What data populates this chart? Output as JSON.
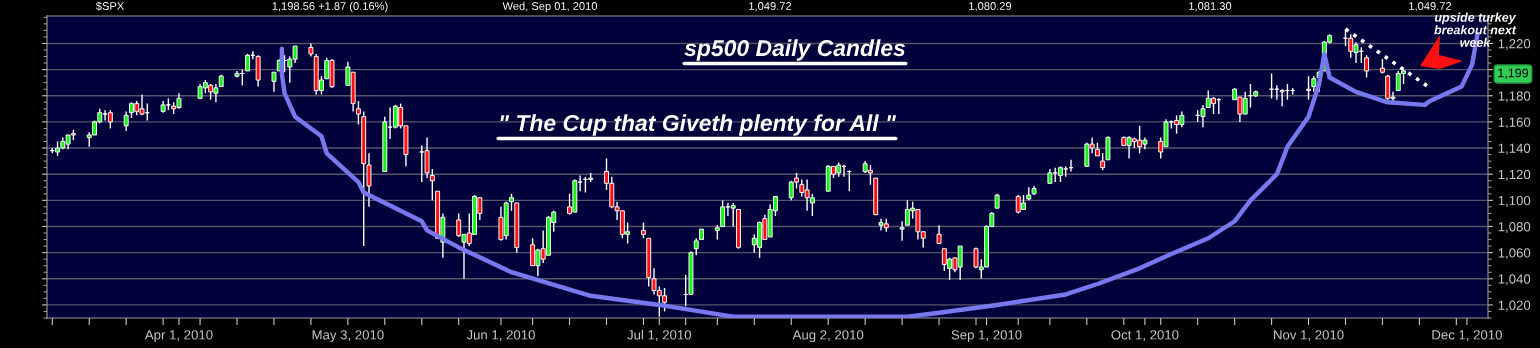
{
  "chart_data": {
    "type": "candlestick",
    "title": "sp500 Daily Candles",
    "subtitle": "\" The Cup that Giveth plenty for All \"",
    "annotations": [
      "$SPX",
      "1,198.56 +1.87 (0.16%)",
      "Wed, Sep 01, 2010",
      "1,049.72",
      "1,080.29",
      "1,081.30",
      "1,049.72",
      "upside turkey\nbreakout next\nweek",
      "1,199"
    ],
    "x": [
      "2010-03-08",
      "2010-03-09",
      "2010-03-10",
      "2010-03-11",
      "2010-03-12",
      "2010-03-15",
      "2010-03-16",
      "2010-03-17",
      "2010-03-18",
      "2010-03-19",
      "2010-03-22",
      "2010-03-23",
      "2010-03-24",
      "2010-03-25",
      "2010-03-26",
      "2010-03-29",
      "2010-03-30",
      "2010-03-31",
      "2010-04-01",
      "2010-04-05",
      "2010-04-06",
      "2010-04-07",
      "2010-04-08",
      "2010-04-09",
      "2010-04-12",
      "2010-04-13",
      "2010-04-14",
      "2010-04-15",
      "2010-04-16",
      "2010-04-19",
      "2010-04-20",
      "2010-04-21",
      "2010-04-22",
      "2010-04-23",
      "2010-04-26",
      "2010-04-27",
      "2010-04-28",
      "2010-04-29",
      "2010-04-30",
      "2010-05-03",
      "2010-05-04",
      "2010-05-05",
      "2010-05-06",
      "2010-05-07",
      "2010-05-10",
      "2010-05-11",
      "2010-05-12",
      "2010-05-13",
      "2010-05-14",
      "2010-05-17",
      "2010-05-18",
      "2010-05-19",
      "2010-05-20",
      "2010-05-21",
      "2010-05-24",
      "2010-05-25",
      "2010-05-26",
      "2010-05-27",
      "2010-05-28",
      "2010-06-01",
      "2010-06-02",
      "2010-06-03",
      "2010-06-04",
      "2010-06-07",
      "2010-06-08",
      "2010-06-09",
      "2010-06-10",
      "2010-06-11",
      "2010-06-14",
      "2010-06-15",
      "2010-06-16",
      "2010-06-17",
      "2010-06-18",
      "2010-06-21",
      "2010-06-22",
      "2010-06-23",
      "2010-06-24",
      "2010-06-25",
      "2010-06-28",
      "2010-06-29",
      "2010-06-30",
      "2010-07-01",
      "2010-07-02",
      "2010-07-06",
      "2010-07-07",
      "2010-07-08",
      "2010-07-09",
      "2010-07-12",
      "2010-07-13",
      "2010-07-14",
      "2010-07-15",
      "2010-07-16",
      "2010-07-19",
      "2010-07-20",
      "2010-07-21",
      "2010-07-22",
      "2010-07-23",
      "2010-07-26",
      "2010-07-27",
      "2010-07-28",
      "2010-07-29",
      "2010-07-30",
      "2010-08-02",
      "2010-08-03",
      "2010-08-04",
      "2010-08-05",
      "2010-08-06",
      "2010-08-09",
      "2010-08-10",
      "2010-08-11",
      "2010-08-12",
      "2010-08-13",
      "2010-08-16",
      "2010-08-17",
      "2010-08-18",
      "2010-08-19",
      "2010-08-20",
      "2010-08-23",
      "2010-08-24",
      "2010-08-25",
      "2010-08-26",
      "2010-08-27",
      "2010-08-30",
      "2010-08-31",
      "2010-09-01",
      "2010-09-02",
      "2010-09-03",
      "2010-09-07",
      "2010-09-08",
      "2010-09-09",
      "2010-09-10",
      "2010-09-13",
      "2010-09-14",
      "2010-09-15",
      "2010-09-16",
      "2010-09-17",
      "2010-09-20",
      "2010-09-21",
      "2010-09-22",
      "2010-09-23",
      "2010-09-24",
      "2010-09-27",
      "2010-09-28",
      "2010-09-29",
      "2010-09-30",
      "2010-10-01",
      "2010-10-04",
      "2010-10-05",
      "2010-10-06",
      "2010-10-07",
      "2010-10-08",
      "2010-10-11",
      "2010-10-12",
      "2010-10-13",
      "2010-10-14",
      "2010-10-15",
      "2010-10-18",
      "2010-10-19",
      "2010-10-20",
      "2010-10-21",
      "2010-10-22",
      "2010-10-25",
      "2010-10-26",
      "2010-10-27",
      "2010-10-28",
      "2010-10-29",
      "2010-11-01",
      "2010-11-02",
      "2010-11-03",
      "2010-11-04",
      "2010-11-05",
      "2010-11-08",
      "2010-11-09",
      "2010-11-10",
      "2010-11-11",
      "2010-11-12",
      "2010-11-15",
      "2010-11-16",
      "2010-11-17",
      "2010-11-18",
      "2010-11-19"
    ],
    "ohlc": [
      [
        1138,
        1140,
        1136,
        1138
      ],
      [
        1137,
        1145,
        1134,
        1140
      ],
      [
        1140,
        1148,
        1139,
        1145
      ],
      [
        1143,
        1150,
        1139,
        1150
      ],
      [
        1151,
        1154,
        1146,
        1150
      ],
      [
        1148,
        1152,
        1141,
        1150
      ],
      [
        1150,
        1161,
        1150,
        1160
      ],
      [
        1160,
        1170,
        1159,
        1167
      ],
      [
        1166,
        1169,
        1161,
        1166
      ],
      [
        1167,
        1169,
        1155,
        1160
      ],
      [
        1157,
        1168,
        1153,
        1165
      ],
      [
        1167,
        1175,
        1163,
        1174
      ],
      [
        1174,
        1176,
        1165,
        1168
      ],
      [
        1170,
        1181,
        1165,
        1166
      ],
      [
        1167,
        1174,
        1161,
        1167
      ],
      [
        1168,
        1176,
        1167,
        1173
      ],
      [
        1173,
        1178,
        1169,
        1173
      ],
      [
        1172,
        1175,
        1166,
        1170
      ],
      [
        1171,
        1182,
        1170,
        1178
      ],
      [
        1178,
        1189,
        1178,
        1187
      ],
      [
        1186,
        1192,
        1182,
        1190
      ],
      [
        1188,
        1189,
        1177,
        1183
      ],
      [
        1182,
        1189,
        1175,
        1186
      ],
      [
        1187,
        1196,
        1187,
        1195
      ],
      [
        1195,
        1199,
        1194,
        1197
      ],
      [
        1197,
        1200,
        1188,
        1197
      ],
      [
        1199,
        1212,
        1199,
        1211
      ],
      [
        1211,
        1214,
        1208,
        1211
      ],
      [
        1210,
        1211,
        1187,
        1192
      ],
      [
        1191,
        1198,
        1183,
        1198
      ],
      [
        1199,
        1208,
        1199,
        1207
      ],
      [
        1207,
        1211,
        1198,
        1207
      ],
      [
        1202,
        1210,
        1190,
        1208
      ],
      [
        1208,
        1218,
        1205,
        1218
      ],
      [
        1217,
        1220,
        1210,
        1212
      ],
      [
        1210,
        1212,
        1181,
        1184
      ],
      [
        1184,
        1195,
        1181,
        1192
      ],
      [
        1193,
        1209,
        1193,
        1207
      ],
      [
        1207,
        1208,
        1186,
        1187
      ],
      [
        1188,
        1206,
        1188,
        1202
      ],
      [
        1198,
        1198,
        1168,
        1174
      ],
      [
        1170,
        1176,
        1158,
        1166
      ],
      [
        1164,
        1168,
        1065,
        1128
      ],
      [
        1127,
        1136,
        1095,
        1111
      ],
      [
        1122,
        1164,
        1122,
        1160
      ],
      [
        1156,
        1171,
        1147,
        1156
      ],
      [
        1156,
        1173,
        1155,
        1172
      ],
      [
        1171,
        1174,
        1155,
        1157
      ],
      [
        1157,
        1157,
        1126,
        1135
      ],
      [
        1137,
        1142,
        1114,
        1137
      ],
      [
        1138,
        1148,
        1117,
        1121
      ],
      [
        1119,
        1124,
        1100,
        1115
      ],
      [
        1107,
        1107,
        1071,
        1071
      ],
      [
        1068,
        1090,
        1056,
        1087
      ],
      [
        1085,
        1090,
        1072,
        1073
      ],
      [
        1068,
        1074,
        1040,
        1074
      ],
      [
        1075,
        1090,
        1065,
        1067
      ],
      [
        1074,
        1104,
        1074,
        1103
      ],
      [
        1102,
        1102,
        1085,
        1090
      ],
      [
        1087,
        1095,
        1069,
        1070
      ],
      [
        1073,
        1099,
        1070,
        1098
      ],
      [
        1099,
        1105,
        1092,
        1102
      ],
      [
        1098,
        1098,
        1060,
        1064
      ],
      [
        1066,
        1071,
        1050,
        1050
      ],
      [
        1050,
        1063,
        1042,
        1062
      ],
      [
        1063,
        1077,
        1052,
        1055
      ],
      [
        1058,
        1088,
        1058,
        1087
      ],
      [
        1083,
        1092,
        1076,
        1091
      ],
      [
        1095,
        1105,
        1089,
        1090
      ],
      [
        1091,
        1116,
        1091,
        1115
      ],
      [
        1114,
        1119,
        1107,
        1114
      ],
      [
        1116,
        1118,
        1106,
        1116
      ],
      [
        1116,
        1121,
        1114,
        1117
      ],
      [
        1122,
        1132,
        1108,
        1113
      ],
      [
        1113,
        1118,
        1094,
        1095
      ],
      [
        1095,
        1099,
        1085,
        1092
      ],
      [
        1092,
        1092,
        1071,
        1074
      ],
      [
        1074,
        1083,
        1067,
        1076
      ],
      [
        1077,
        1083,
        1071,
        1074
      ],
      [
        1071,
        1071,
        1034,
        1041
      ],
      [
        1040,
        1048,
        1028,
        1031
      ],
      [
        1031,
        1034,
        1011,
        1027
      ],
      [
        1027,
        1033,
        1015,
        1022
      ],
      [
        1028,
        1043,
        1019,
        1028
      ],
      [
        1028,
        1061,
        1028,
        1060
      ],
      [
        1063,
        1071,
        1058,
        1069
      ],
      [
        1070,
        1078,
        1070,
        1078
      ],
      [
        1077,
        1081,
        1070,
        1079
      ],
      [
        1080,
        1100,
        1080,
        1095
      ],
      [
        1095,
        1098,
        1088,
        1095
      ],
      [
        1094,
        1098,
        1080,
        1096
      ],
      [
        1093,
        1093,
        1063,
        1064
      ],
      [
        1066,
        1074,
        1060,
        1071
      ],
      [
        1064,
        1084,
        1056,
        1083
      ],
      [
        1086,
        1089,
        1070,
        1070
      ],
      [
        1072,
        1097,
        1072,
        1093
      ],
      [
        1092,
        1103,
        1088,
        1103
      ],
      [
        1102,
        1115,
        1100,
        1114
      ],
      [
        1117,
        1121,
        1109,
        1114
      ],
      [
        1112,
        1116,
        1103,
        1106
      ],
      [
        1108,
        1116,
        1092,
        1102
      ],
      [
        1098,
        1105,
        1088,
        1102
      ],
      [
        1107,
        1127,
        1107,
        1126
      ],
      [
        1126,
        1126,
        1117,
        1120
      ],
      [
        1121,
        1129,
        1118,
        1127
      ],
      [
        1126,
        1127,
        1118,
        1126
      ],
      [
        1122,
        1123,
        1107,
        1122
      ],
      [
        1122,
        1130,
        1121,
        1128
      ],
      [
        1123,
        1127,
        1112,
        1121
      ],
      [
        1117,
        1117,
        1089,
        1089
      ],
      [
        1081,
        1086,
        1077,
        1083
      ],
      [
        1082,
        1086,
        1076,
        1079
      ],
      [
        1078,
        1084,
        1069,
        1079
      ],
      [
        1081,
        1100,
        1081,
        1093
      ],
      [
        1092,
        1099,
        1086,
        1094
      ],
      [
        1093,
        1093,
        1070,
        1076
      ],
      [
        1076,
        1076,
        1064,
        1071
      ],
      [
        1074,
        1081,
        1067,
        1067
      ],
      [
        1063,
        1063,
        1046,
        1051
      ],
      [
        1048,
        1056,
        1039,
        1055
      ],
      [
        1056,
        1056,
        1045,
        1047
      ],
      [
        1049,
        1065,
        1039,
        1065
      ],
      [
        1063,
        1064,
        1048,
        1049
      ],
      [
        1047,
        1055,
        1040,
        1049
      ],
      [
        1049,
        1081,
        1049,
        1080
      ],
      [
        1080,
        1091,
        1080,
        1090
      ],
      [
        1094,
        1105,
        1094,
        1104
      ],
      [
        1103,
        1104,
        1090,
        1091
      ],
      [
        1093,
        1104,
        1093,
        1098
      ],
      [
        1101,
        1110,
        1100,
        1104
      ],
      [
        1105,
        1111,
        1104,
        1109
      ],
      [
        1113,
        1124,
        1113,
        1121
      ],
      [
        1121,
        1125,
        1114,
        1121
      ],
      [
        1119,
        1126,
        1114,
        1125
      ],
      [
        1124,
        1126,
        1118,
        1124
      ],
      [
        1125,
        1131,
        1122,
        1125
      ],
      [
        1126,
        1144,
        1126,
        1143
      ],
      [
        1143,
        1148,
        1136,
        1140
      ],
      [
        1139,
        1144,
        1134,
        1134
      ],
      [
        1130,
        1136,
        1123,
        1125
      ],
      [
        1131,
        1149,
        1131,
        1148
      ],
      [
        1148,
        1149,
        1142,
        1142
      ],
      [
        1142,
        1149,
        1132,
        1148
      ],
      [
        1147,
        1148,
        1140,
        1145
      ],
      [
        1146,
        1157,
        1136,
        1141
      ],
      [
        1143,
        1148,
        1139,
        1146
      ],
      [
        1145,
        1148,
        1132,
        1137
      ],
      [
        1141,
        1162,
        1141,
        1160
      ],
      [
        1160,
        1161,
        1155,
        1160
      ],
      [
        1161,
        1165,
        1151,
        1158
      ],
      [
        1158,
        1168,
        1156,
        1165
      ],
      [
        1165,
        1169,
        1160,
        1165
      ],
      [
        1164,
        1173,
        1156,
        1170
      ],
      [
        1171,
        1184,
        1171,
        1178
      ],
      [
        1178,
        1179,
        1166,
        1174
      ],
      [
        1177,
        1178,
        1166,
        1177
      ],
      [
        1177,
        1186,
        1177,
        1185
      ],
      [
        1179,
        1179,
        1160,
        1166
      ],
      [
        1166,
        1183,
        1166,
        1178
      ],
      [
        1180,
        1189,
        1171,
        1180
      ],
      [
        1180,
        1184,
        1179,
        1183
      ],
      [
        1185,
        1197,
        1178,
        1185
      ],
      [
        1185,
        1188,
        1177,
        1185
      ],
      [
        1184,
        1185,
        1172,
        1183
      ],
      [
        1184,
        1189,
        1177,
        1184
      ],
      [
        1184,
        1186,
        1181,
        1184
      ],
      [
        1185,
        1195,
        1177,
        1184
      ],
      [
        1187,
        1195,
        1183,
        1193
      ],
      [
        1194,
        1199,
        1183,
        1198
      ],
      [
        1199,
        1222,
        1199,
        1221
      ],
      [
        1221,
        1227,
        1220,
        1226
      ],
      [
        1224,
        1231,
        1218,
        1224
      ],
      [
        1224,
        1227,
        1209,
        1214
      ],
      [
        1213,
        1221,
        1205,
        1219
      ],
      [
        1214,
        1217,
        1205,
        1214
      ],
      [
        1209,
        1211,
        1194,
        1199
      ],
      [
        1201,
        1208,
        1197,
        1198
      ],
      [
        1195,
        1196,
        1176,
        1178
      ],
      [
        1178,
        1183,
        1176,
        1179
      ],
      [
        1184,
        1199,
        1184,
        1197
      ],
      [
        1197,
        1200,
        1189,
        1199
      ]
    ],
    "series": [
      {
        "type": "line",
        "color": "#7878ee",
        "line_style": "solid",
        "x": [
          "2010-04-20T12:00",
          "2010-04-20T12:00",
          "2010-04-21",
          "2010-04-23",
          "2010-04-28",
          "2010-04-29",
          "2010-05-05",
          "2010-05-06",
          "2010-05-17",
          "2010-05-18",
          "2010-05-24",
          "2010-06-03",
          "2010-06-18",
          "2010-07-01",
          "2010-07-15",
          "2010-08-17",
          "2010-08-23",
          "2010-09-03",
          "2010-09-16",
          "2010-09-22",
          "2010-09-30",
          "2010-10-06",
          "2010-10-13",
          "2010-10-18",
          "2010-10-21",
          "2010-10-26",
          "2010-10-28",
          "2010-11-01",
          "2010-11-03",
          "2010-11-04",
          "2010-11-05",
          "2010-11-10",
          "2010-11-16",
          "2010-11-23",
          "2010-11-24",
          "2010-11-30",
          "2010-12-02",
          "2010-12-03"
        ],
        "values": [
          1216,
          1197,
          1182,
          1164,
          1149,
          1136,
          1114,
          1106,
          1084,
          1077,
          1064,
          1045,
          1027,
          1020,
          1011,
          1011,
          1014,
          1020,
          1028,
          1036,
          1048,
          1059,
          1071,
          1084,
          1100,
          1120,
          1141,
          1164,
          1189,
          1212,
          1194,
          1183,
          1175,
          1173,
          1176,
          1187,
          1204,
          1227
        ]
      },
      {
        "type": "line",
        "color": "#ffffff",
        "line_style": "dotted",
        "x": [
          "2010-11-08",
          "2010-11-24"
        ],
        "values": [
          1231,
          1186
        ]
      }
    ],
    "xlim": [
      "2010-03-07",
      "2010-12-05"
    ],
    "xticks": [
      {
        "value": "2010-03-08",
        "label": null
      },
      {
        "value": "2010-03-15",
        "label": null
      },
      {
        "value": "2010-03-22",
        "label": null
      },
      {
        "value": "2010-03-29",
        "label": null
      },
      {
        "value": "2010-04-01",
        "label": "Apr 1, 2010"
      },
      {
        "value": "2010-04-05",
        "label": null
      },
      {
        "value": "2010-04-12",
        "label": null
      },
      {
        "value": "2010-04-19",
        "label": null
      },
      {
        "value": "2010-04-26",
        "label": null
      },
      {
        "value": "2010-05-03",
        "label": "May 3, 2010"
      },
      {
        "value": "2010-05-10",
        "label": null
      },
      {
        "value": "2010-05-17",
        "label": null
      },
      {
        "value": "2010-05-24",
        "label": null
      },
      {
        "value": "2010-06-01",
        "label": "Jun 1, 2010"
      },
      {
        "value": "2010-06-07",
        "label": null
      },
      {
        "value": "2010-06-14",
        "label": null
      },
      {
        "value": "2010-06-21",
        "label": null
      },
      {
        "value": "2010-06-28",
        "label": null
      },
      {
        "value": "2010-07-01",
        "label": "Jul 1, 2010"
      },
      {
        "value": "2010-07-06",
        "label": null
      },
      {
        "value": "2010-07-12",
        "label": null
      },
      {
        "value": "2010-07-19",
        "label": null
      },
      {
        "value": "2010-07-26",
        "label": null
      },
      {
        "value": "2010-08-02",
        "label": "Aug 2, 2010"
      },
      {
        "value": "2010-08-09",
        "label": null
      },
      {
        "value": "2010-08-16",
        "label": null
      },
      {
        "value": "2010-08-23",
        "label": null
      },
      {
        "value": "2010-08-30",
        "label": null
      },
      {
        "value": "2010-09-01",
        "label": "Sep 1, 2010"
      },
      {
        "value": "2010-09-07",
        "label": null
      },
      {
        "value": "2010-09-13",
        "label": null
      },
      {
        "value": "2010-09-20",
        "label": null
      },
      {
        "value": "2010-09-27",
        "label": null
      },
      {
        "value": "2010-10-01",
        "label": "Oct 1, 2010"
      },
      {
        "value": "2010-10-04",
        "label": null
      },
      {
        "value": "2010-10-11",
        "label": null
      },
      {
        "value": "2010-10-18",
        "label": null
      },
      {
        "value": "2010-10-25",
        "label": null
      },
      {
        "value": "2010-11-01",
        "label": "Nov 1, 2010"
      },
      {
        "value": "2010-11-08",
        "label": null
      },
      {
        "value": "2010-11-15",
        "label": null
      },
      {
        "value": "2010-11-22",
        "label": null
      },
      {
        "value": "2010-11-29",
        "label": null
      },
      {
        "value": "2010-12-01",
        "label": "Dec 1, 2010"
      }
    ],
    "ylim": [
      1010,
      1241
    ],
    "yticks": [
      {
        "value": 1020,
        "label": "1,020"
      },
      {
        "value": 1040,
        "label": "1,040"
      },
      {
        "value": 1060,
        "label": "1,060"
      },
      {
        "value": 1080,
        "label": "1,080"
      },
      {
        "value": 1100,
        "label": "1,100"
      },
      {
        "value": 1120,
        "label": "1,120"
      },
      {
        "value": 1140,
        "label": "1,140"
      },
      {
        "value": 1160,
        "label": "1,160"
      },
      {
        "value": 1180,
        "label": "1,180"
      },
      {
        "value": 1200,
        "label": null
      },
      {
        "value": 1220,
        "label": "1,220"
      }
    ],
    "grid": "y"
  }
}
